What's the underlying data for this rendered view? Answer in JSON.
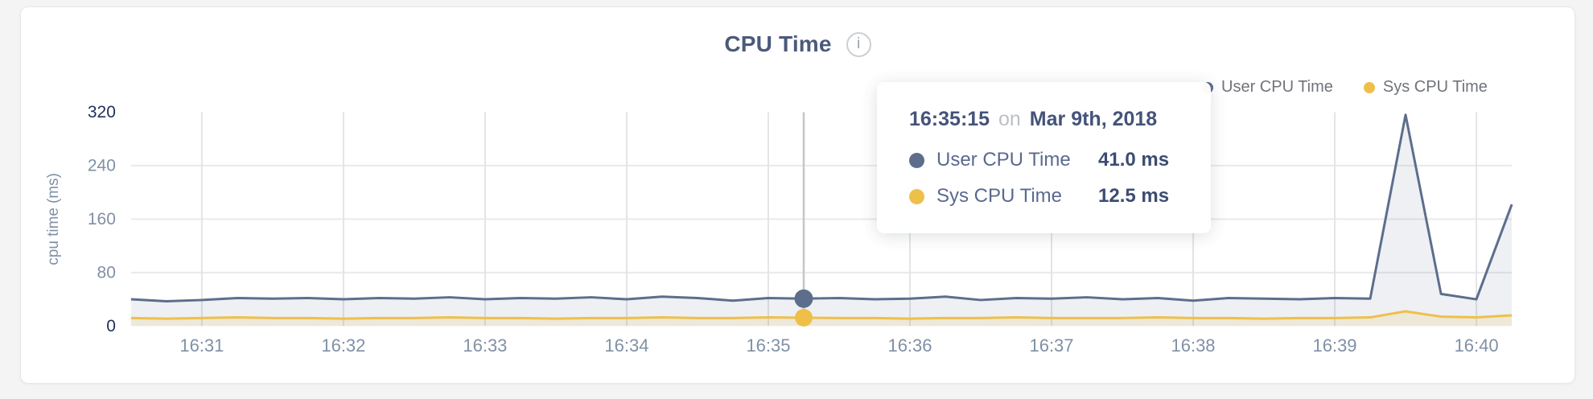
{
  "header": {
    "title": "CPU Time",
    "info_glyph": "i"
  },
  "legend": {
    "items": [
      {
        "label": "User CPU Time",
        "color": "#5d6e8c"
      },
      {
        "label": "Sys CPU Time",
        "color": "#eec04a"
      }
    ]
  },
  "tooltip": {
    "time": "16:35:15",
    "conjunction": "on",
    "date": "Mar 9th, 2018",
    "rows": [
      {
        "label": "User CPU Time",
        "value": "41.0 ms",
        "color": "#5d6e8c"
      },
      {
        "label": "Sys CPU Time",
        "value": "12.5 ms",
        "color": "#eec04a"
      }
    ]
  },
  "chart_data": {
    "type": "area",
    "title": "CPU Time",
    "xlabel": "",
    "ylabel": "cpu time (ms)",
    "ylim": [
      0,
      320
    ],
    "y_ticks": [
      0,
      80,
      160,
      240,
      320
    ],
    "x_ticks": [
      "16:31",
      "16:32",
      "16:33",
      "16:34",
      "16:35",
      "16:36",
      "16:37",
      "16:38",
      "16:39",
      "16:40"
    ],
    "x_domain": [
      "16:30:30",
      "16:40:15"
    ],
    "grid": true,
    "legend_position": "top-right",
    "x": [
      "16:30:30",
      "16:30:45",
      "16:31:00",
      "16:31:15",
      "16:31:30",
      "16:31:45",
      "16:32:00",
      "16:32:15",
      "16:32:30",
      "16:32:45",
      "16:33:00",
      "16:33:15",
      "16:33:30",
      "16:33:45",
      "16:34:00",
      "16:34:15",
      "16:34:30",
      "16:34:45",
      "16:35:00",
      "16:35:15",
      "16:35:30",
      "16:35:45",
      "16:36:00",
      "16:36:15",
      "16:36:30",
      "16:36:45",
      "16:37:00",
      "16:37:15",
      "16:37:30",
      "16:37:45",
      "16:38:00",
      "16:38:15",
      "16:38:30",
      "16:38:45",
      "16:39:00",
      "16:39:15",
      "16:39:30",
      "16:39:45",
      "16:40:00",
      "16:40:15"
    ],
    "series": [
      {
        "name": "User CPU Time",
        "color": "#5d6e8c",
        "fill": "rgba(93,110,140,0.10)",
        "values": [
          40,
          37,
          39,
          42,
          41,
          42,
          40,
          42,
          41,
          43,
          40,
          42,
          41,
          43,
          40,
          44,
          42,
          38,
          42,
          41,
          42,
          40,
          41,
          44,
          39,
          42,
          41,
          43,
          40,
          42,
          38,
          42,
          41,
          40,
          42,
          41,
          316,
          48,
          40,
          182
        ]
      },
      {
        "name": "Sys CPU Time",
        "color": "#eec04a",
        "fill": "rgba(238,192,74,0.16)",
        "values": [
          12,
          11,
          12,
          13,
          12,
          12,
          11,
          12,
          12,
          13,
          12,
          12,
          11,
          12,
          12,
          13,
          12,
          12,
          13,
          12.5,
          12,
          12,
          11,
          12,
          12,
          13,
          12,
          12,
          12,
          13,
          12,
          12,
          11,
          12,
          12,
          13,
          22,
          14,
          13,
          16
        ]
      }
    ],
    "hover": {
      "time": "16:35:15",
      "date": "Mar 9th, 2018",
      "user_ms": 41.0,
      "sys_ms": 12.5
    },
    "colors": {
      "grid_vertical": "#e3e4e6",
      "grid_horizontal": "#e9eaec",
      "crosshair": "#c5c6c8",
      "tick_label": "#8090a6",
      "tick_label_extreme": "#22305a",
      "axis_title": "#8090a6"
    }
  }
}
